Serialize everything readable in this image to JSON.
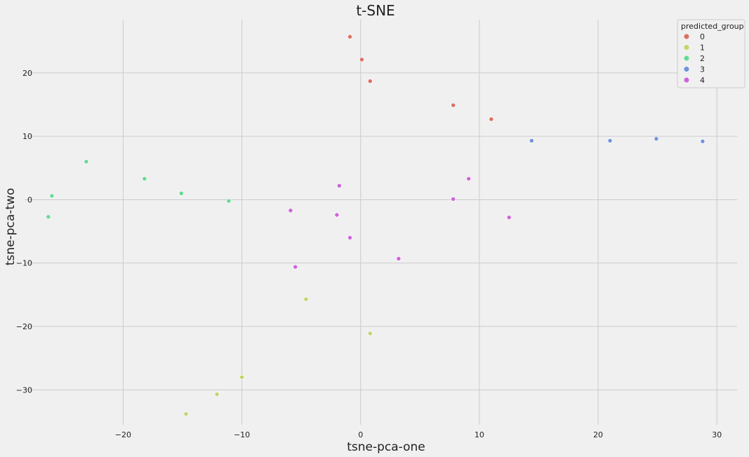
{
  "chart_data": {
    "type": "scatter",
    "title": "t-SNE",
    "xlabel": "tsne-pca-one",
    "ylabel": "tsne-pca-two",
    "xlim": [
      -28.3,
      31.7
    ],
    "ylim": [
      -35.5,
      28.4
    ],
    "xticks": [
      -20,
      -10,
      0,
      10,
      20,
      30
    ],
    "yticks": [
      -30,
      -20,
      -10,
      0,
      10,
      20
    ],
    "grid": true,
    "legend": {
      "title": "predicted_group",
      "placement": "top-right"
    },
    "series": [
      {
        "name": "0",
        "color": "#db6f63",
        "x": [
          -0.9,
          0.1,
          0.8,
          7.8,
          11.0
        ],
        "y": [
          25.7,
          22.1,
          18.7,
          14.9,
          12.7
        ]
      },
      {
        "name": "1",
        "color": "#c5d36a",
        "x": [
          -4.6,
          0.8,
          -10.0,
          -12.1,
          -14.7
        ],
        "y": [
          -15.7,
          -21.1,
          -28.0,
          -30.7,
          -33.8
        ]
      },
      {
        "name": "2",
        "color": "#63db92",
        "x": [
          -23.1,
          -18.2,
          -26.0,
          -15.1,
          -26.3,
          -11.1
        ],
        "y": [
          6.0,
          3.3,
          0.6,
          1.0,
          -2.7,
          -0.2
        ]
      },
      {
        "name": "3",
        "color": "#6f93db",
        "x": [
          14.4,
          21.0,
          24.9,
          28.8
        ],
        "y": [
          9.3,
          9.3,
          9.6,
          9.2
        ]
      },
      {
        "name": "4",
        "color": "#cf63db",
        "x": [
          -5.9,
          -1.8,
          -2.0,
          -0.9,
          -5.5,
          3.2,
          9.1,
          7.8,
          12.5
        ],
        "y": [
          -1.7,
          2.2,
          -2.4,
          -6.0,
          -10.6,
          -9.3,
          3.3,
          0.1,
          -2.8
        ]
      }
    ]
  }
}
